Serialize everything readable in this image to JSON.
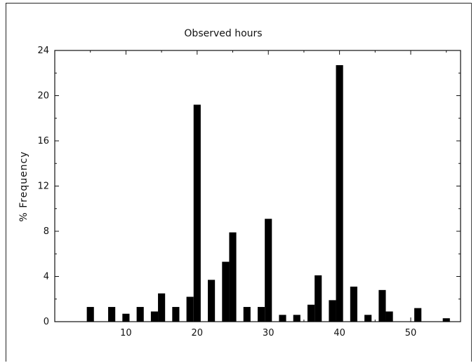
{
  "chart_data": {
    "type": "bar",
    "title": "Observed hours",
    "xlabel": "",
    "ylabel": "% Frequency",
    "xlim": [
      0,
      57
    ],
    "ylim": [
      0,
      24
    ],
    "x_ticks": [
      10,
      20,
      30,
      40,
      50
    ],
    "y_ticks": [
      0,
      4,
      8,
      12,
      16,
      20,
      24
    ],
    "grid": false,
    "x": [
      5,
      8,
      10,
      12,
      14,
      15,
      17,
      19,
      20,
      22,
      24,
      25,
      27,
      29,
      30,
      32,
      34,
      36,
      37,
      39,
      40,
      42,
      44,
      46,
      47,
      51,
      55
    ],
    "values": [
      1.3,
      1.3,
      0.7,
      1.3,
      0.9,
      2.5,
      1.3,
      2.2,
      19.2,
      3.7,
      5.3,
      7.9,
      1.3,
      1.3,
      9.1,
      0.6,
      0.6,
      1.5,
      4.1,
      1.9,
      22.7,
      3.1,
      0.6,
      2.8,
      0.9,
      1.2,
      0.3
    ]
  }
}
